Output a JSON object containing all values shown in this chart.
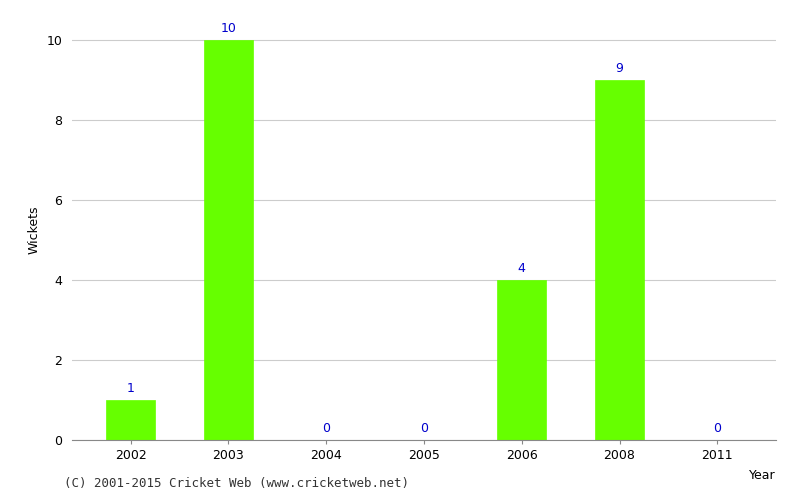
{
  "categories": [
    "2002",
    "2003",
    "2004",
    "2005",
    "2006",
    "2008",
    "2011"
  ],
  "values": [
    1,
    10,
    0,
    0,
    4,
    9,
    0
  ],
  "bar_color": "#66ff00",
  "label_color": "#0000cc",
  "ylabel": "Wickets",
  "xlabel_right": "Year",
  "ylim": [
    0,
    10.5
  ],
  "yticks": [
    0,
    2,
    4,
    6,
    8,
    10
  ],
  "background_color": "#ffffff",
  "grid_color": "#cccccc",
  "footer": "(C) 2001-2015 Cricket Web (www.cricketweb.net)",
  "label_fontsize": 9,
  "axis_fontsize": 9,
  "footer_fontsize": 9,
  "bar_width": 0.5
}
